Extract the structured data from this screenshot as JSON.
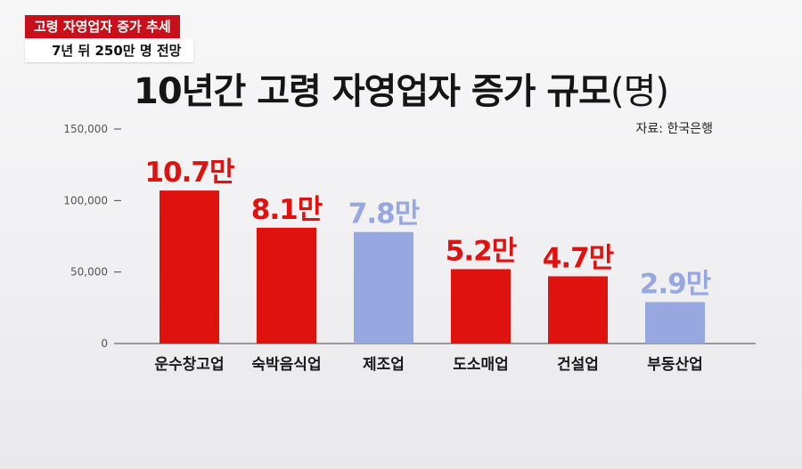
{
  "header": {
    "topic": "고령 자영업자 증가 추세",
    "subtopic": "7년 뒤 250만 명 전망"
  },
  "colors": {
    "highlight": "#e0120f",
    "muted": "#97a7e0",
    "axis": "#444444"
  },
  "chart_data": {
    "type": "bar",
    "title": "10년간 고령 자영업자 증가 규모",
    "title_unit": "(명)",
    "source": "자료: 한국은행",
    "categories": [
      "운수창고업",
      "숙박음식업",
      "제조업",
      "도소매업",
      "건설업",
      "부동산업"
    ],
    "values": [
      107000,
      81000,
      78000,
      52000,
      47000,
      29000
    ],
    "data_labels": [
      "10.7만",
      "8.1만",
      "7.8만",
      "5.2만",
      "4.7만",
      "2.9만"
    ],
    "highlighted": [
      true,
      true,
      false,
      true,
      true,
      false
    ],
    "yticks": [
      "0",
      "50,000",
      "100,000",
      "150,000"
    ],
    "ytick_values": [
      0,
      50000,
      100000,
      150000
    ],
    "ylim": [
      0,
      150000
    ],
    "grid": false,
    "xlabel": "",
    "ylabel": ""
  }
}
